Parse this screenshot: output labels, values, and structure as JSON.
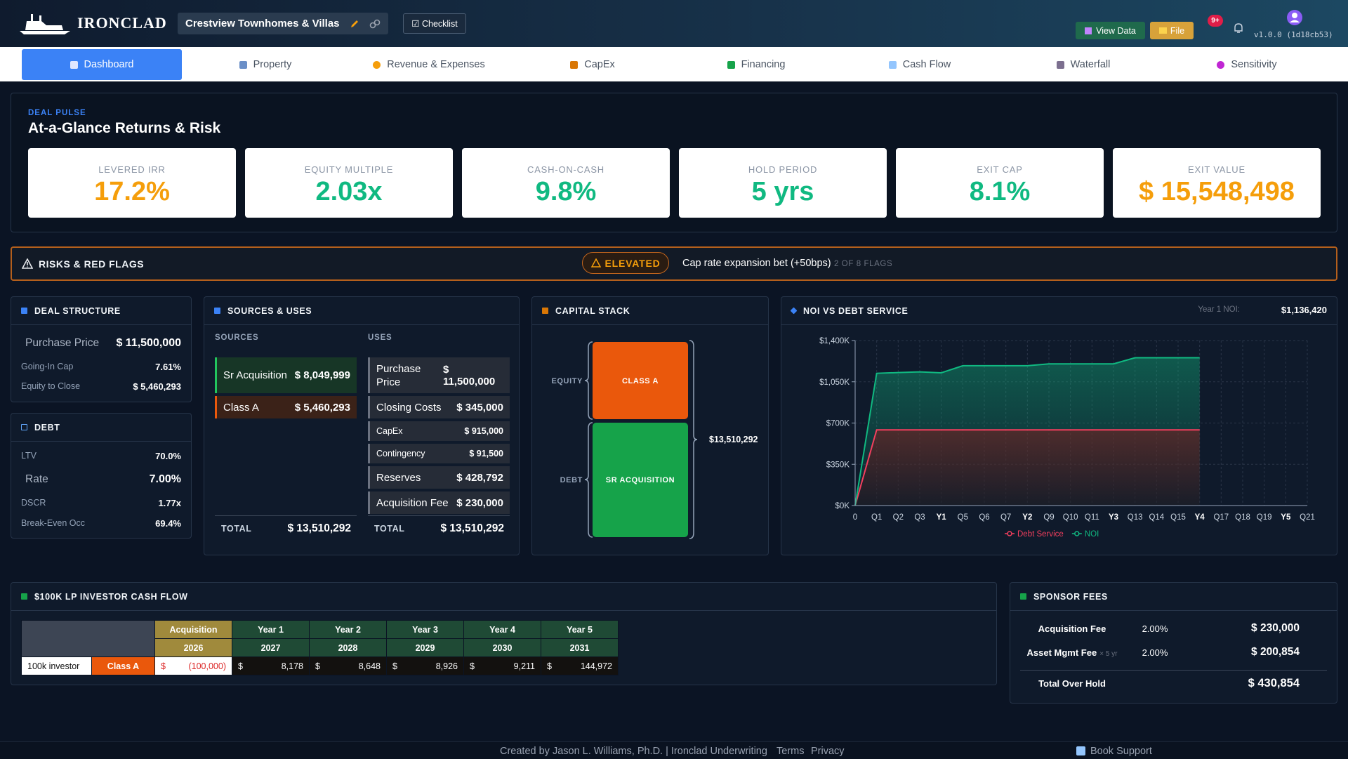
{
  "header": {
    "brand": "IRONCLAD",
    "project": "Crestview Townhomes & Villas",
    "checklist": "☑ Checklist",
    "view_data": "View Data",
    "file": "File",
    "badge": "9+",
    "version": "v1.0.0 (1d18cb53)"
  },
  "tabs": [
    "Dashboard",
    "Property",
    "Revenue & Expenses",
    "CapEx",
    "Financing",
    "Cash Flow",
    "Waterfall",
    "Sensitivity"
  ],
  "pulse": {
    "kicker": "DEAL PULSE",
    "title": "At-a-Glance Returns & Risk",
    "kpis": [
      {
        "label": "LEVERED IRR",
        "value": "17.2%"
      },
      {
        "label": "EQUITY MULTIPLE",
        "value": "2.03x"
      },
      {
        "label": "CASH-ON-CASH",
        "value": "9.8%"
      },
      {
        "label": "HOLD PERIOD",
        "value": "5 yrs"
      },
      {
        "label": "EXIT CAP",
        "value": "8.1%"
      },
      {
        "label": "EXIT VALUE",
        "value": "$ 15,548,498"
      }
    ]
  },
  "risks": {
    "title": "RISKS & RED FLAGS",
    "level": "ELEVATED",
    "message": "Cap rate expansion bet (+50bps)",
    "count": "2 OF 8 FLAGS"
  },
  "deal_structure": {
    "title": "DEAL STRUCTURE",
    "rows": [
      {
        "label": "Purchase Price",
        "value": "$ 11,500,000"
      },
      {
        "label": "Going-In Cap",
        "value": "7.61%"
      },
      {
        "label": "Equity to Close",
        "value": "$ 5,460,293"
      }
    ]
  },
  "debt": {
    "title": "DEBT",
    "rows": [
      {
        "label": "LTV",
        "value": "70.0%"
      },
      {
        "label": "Rate",
        "value": "7.00%"
      },
      {
        "label": "DSCR",
        "value": "1.77x"
      },
      {
        "label": "Break-Even Occ",
        "value": "69.4%"
      }
    ]
  },
  "sources_uses": {
    "title": "SOURCES & USES",
    "sources_heading": "SOURCES",
    "uses_heading": "USES",
    "sources": [
      {
        "name": "Sr Acquisition",
        "amount": "$ 8,049,999"
      },
      {
        "name": "Class A",
        "amount": "$ 5,460,293"
      }
    ],
    "uses": [
      {
        "name": "Purchase Price",
        "amount": "$ 11,500,000"
      },
      {
        "name": "Closing Costs",
        "amount": "$ 345,000"
      },
      {
        "name": "CapEx",
        "amount": "$ 915,000"
      },
      {
        "name": "Contingency",
        "amount": "$ 91,500"
      },
      {
        "name": "Reserves",
        "amount": "$ 428,792"
      },
      {
        "name": "Acquisition Fee",
        "amount": "$ 230,000"
      }
    ],
    "sources_total": {
      "label": "TOTAL",
      "amount": "$ 13,510,292"
    },
    "uses_total": {
      "label": "TOTAL",
      "amount": "$ 13,510,292"
    }
  },
  "capital_stack": {
    "title": "CAPITAL STACK",
    "equity_label": "EQUITY",
    "debt_label": "DEBT",
    "equity_tranche": "CLASS A",
    "debt_tranche": "SR ACQUISITION",
    "total": "$13,510,292"
  },
  "noi_chart": {
    "type": "line",
    "title": "NOI VS DEBT SERVICE",
    "note_label": "Year 1 NOI:",
    "note_value": "$1,136,420",
    "categories": [
      "0",
      "Q1",
      "Q2",
      "Q3",
      "Y1",
      "Q5",
      "Q6",
      "Q7",
      "Y2",
      "Q9",
      "Q10",
      "Q11",
      "Y3",
      "Q13",
      "Q14",
      "Q15",
      "Y4",
      "Q17",
      "Q18",
      "Q19",
      "Y5",
      "Q21"
    ],
    "series": [
      {
        "name": "Debt Service",
        "color": "#f43f5e",
        "values": [
          0,
          642000,
          642000,
          642000,
          642000,
          642000,
          642000,
          642000,
          642000,
          642000,
          642000,
          642000,
          642000,
          642000,
          642000,
          642000,
          642000,
          null,
          null,
          null,
          null,
          null
        ]
      },
      {
        "name": "NOI",
        "color": "#10b981",
        "values": [
          0,
          1122000,
          1128000,
          1134000,
          1126000,
          1186000,
          1186000,
          1186000,
          1186000,
          1202000,
          1202000,
          1202000,
          1202000,
          1254000,
          1254000,
          1254000,
          1254000,
          null,
          null,
          null,
          null,
          null
        ]
      }
    ],
    "ylim": [
      0,
      1400000
    ],
    "yticks": [
      {
        "value": 0,
        "label": "$0K"
      },
      {
        "value": 350000,
        "label": "$350K"
      },
      {
        "value": 700000,
        "label": "$700K"
      },
      {
        "value": 1050000,
        "label": "$1,050K"
      },
      {
        "value": 1400000,
        "label": "$1,400K"
      }
    ],
    "grid": true
  },
  "lp_cash_flow": {
    "title": "$100K LP INVESTOR CASH FLOW",
    "columns": [
      "Acquisition",
      "Year 1",
      "Year 2",
      "Year 3",
      "Year 4",
      "Year 5"
    ],
    "years": [
      "2026",
      "2027",
      "2028",
      "2029",
      "2030",
      "2031"
    ],
    "row_label": "100k investor",
    "row_class": "Class A",
    "cells": [
      {
        "sign": "$",
        "amount": "(100,000)"
      },
      {
        "sign": "$",
        "amount": "8,178"
      },
      {
        "sign": "$",
        "amount": "8,648"
      },
      {
        "sign": "$",
        "amount": "8,926"
      },
      {
        "sign": "$",
        "amount": "9,211"
      },
      {
        "sign": "$",
        "amount": "144,972"
      }
    ]
  },
  "sponsor_fees": {
    "title": "SPONSOR FEES",
    "rows": [
      {
        "name": "Acquisition Fee",
        "note": "",
        "pct": "2.00%",
        "amount": "$ 230,000"
      },
      {
        "name": "Asset Mgmt Fee",
        "note": "× 5 yr",
        "pct": "2.00%",
        "amount": "$ 200,854"
      }
    ],
    "total": {
      "label": "Total Over Hold",
      "amount": "$ 430,854"
    }
  },
  "footer": {
    "credit": "Created by Jason L. Williams, Ph.D. | Ironclad Underwriting",
    "terms": "Terms",
    "privacy": "Privacy",
    "support": "Book Support"
  }
}
